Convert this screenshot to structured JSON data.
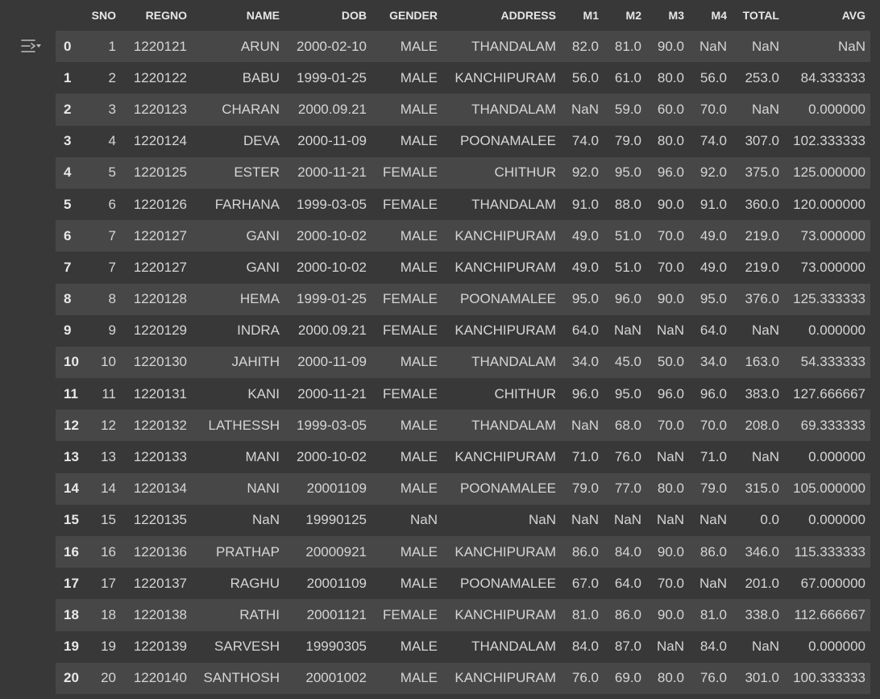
{
  "columns": [
    "",
    "SNO",
    "REGNO",
    "NAME",
    "DOB",
    "GENDER",
    "ADDRESS",
    "M1",
    "M2",
    "M3",
    "M4",
    "TOTAL",
    "AVG"
  ],
  "rows": [
    [
      "0",
      "1",
      "1220121",
      "ARUN",
      "2000-02-10",
      "MALE",
      "THANDALAM",
      "82.0",
      "81.0",
      "90.0",
      "NaN",
      "NaN",
      "NaN"
    ],
    [
      "1",
      "2",
      "1220122",
      "BABU",
      "1999-01-25",
      "MALE",
      "KANCHIPURAM",
      "56.0",
      "61.0",
      "80.0",
      "56.0",
      "253.0",
      "84.333333"
    ],
    [
      "2",
      "3",
      "1220123",
      "CHARAN",
      "2000.09.21",
      "MALE",
      "THANDALAM",
      "NaN",
      "59.0",
      "60.0",
      "70.0",
      "NaN",
      "0.000000"
    ],
    [
      "3",
      "4",
      "1220124",
      "DEVA",
      "2000-11-09",
      "MALE",
      "POONAMALEE",
      "74.0",
      "79.0",
      "80.0",
      "74.0",
      "307.0",
      "102.333333"
    ],
    [
      "4",
      "5",
      "1220125",
      "ESTER",
      "2000-11-21",
      "FEMALE",
      "CHITHUR",
      "92.0",
      "95.0",
      "96.0",
      "92.0",
      "375.0",
      "125.000000"
    ],
    [
      "5",
      "6",
      "1220126",
      "FARHANA",
      "1999-03-05",
      "FEMALE",
      "THANDALAM",
      "91.0",
      "88.0",
      "90.0",
      "91.0",
      "360.0",
      "120.000000"
    ],
    [
      "6",
      "7",
      "1220127",
      "GANI",
      "2000-10-02",
      "MALE",
      "KANCHIPURAM",
      "49.0",
      "51.0",
      "70.0",
      "49.0",
      "219.0",
      "73.000000"
    ],
    [
      "7",
      "7",
      "1220127",
      "GANI",
      "2000-10-02",
      "MALE",
      "KANCHIPURAM",
      "49.0",
      "51.0",
      "70.0",
      "49.0",
      "219.0",
      "73.000000"
    ],
    [
      "8",
      "8",
      "1220128",
      "HEMA",
      "1999-01-25",
      "FEMALE",
      "POONAMALEE",
      "95.0",
      "96.0",
      "90.0",
      "95.0",
      "376.0",
      "125.333333"
    ],
    [
      "9",
      "9",
      "1220129",
      "INDRA",
      "2000.09.21",
      "FEMALE",
      "KANCHIPURAM",
      "64.0",
      "NaN",
      "NaN",
      "64.0",
      "NaN",
      "0.000000"
    ],
    [
      "10",
      "10",
      "1220130",
      "JAHITH",
      "2000-11-09",
      "MALE",
      "THANDALAM",
      "34.0",
      "45.0",
      "50.0",
      "34.0",
      "163.0",
      "54.333333"
    ],
    [
      "11",
      "11",
      "1220131",
      "KANI",
      "2000-11-21",
      "FEMALE",
      "CHITHUR",
      "96.0",
      "95.0",
      "96.0",
      "96.0",
      "383.0",
      "127.666667"
    ],
    [
      "12",
      "12",
      "1220132",
      "LATHESSH",
      "1999-03-05",
      "MALE",
      "THANDALAM",
      "NaN",
      "68.0",
      "70.0",
      "70.0",
      "208.0",
      "69.333333"
    ],
    [
      "13",
      "13",
      "1220133",
      "MANI",
      "2000-10-02",
      "MALE",
      "KANCHIPURAM",
      "71.0",
      "76.0",
      "NaN",
      "71.0",
      "NaN",
      "0.000000"
    ],
    [
      "14",
      "14",
      "1220134",
      "NANI",
      "20001109",
      "MALE",
      "POONAMALEE",
      "79.0",
      "77.0",
      "80.0",
      "79.0",
      "315.0",
      "105.000000"
    ],
    [
      "15",
      "15",
      "1220135",
      "NaN",
      "19990125",
      "NaN",
      "NaN",
      "NaN",
      "NaN",
      "NaN",
      "NaN",
      "0.0",
      "0.000000"
    ],
    [
      "16",
      "16",
      "1220136",
      "PRATHAP",
      "20000921",
      "MALE",
      "KANCHIPURAM",
      "86.0",
      "84.0",
      "90.0",
      "86.0",
      "346.0",
      "115.333333"
    ],
    [
      "17",
      "17",
      "1220137",
      "RAGHU",
      "20001109",
      "MALE",
      "POONAMALEE",
      "67.0",
      "64.0",
      "70.0",
      "NaN",
      "201.0",
      "67.000000"
    ],
    [
      "18",
      "18",
      "1220138",
      "RATHI",
      "20001121",
      "FEMALE",
      "KANCHIPURAM",
      "81.0",
      "86.0",
      "90.0",
      "81.0",
      "338.0",
      "112.666667"
    ],
    [
      "19",
      "19",
      "1220139",
      "SARVESH",
      "19990305",
      "MALE",
      "THANDALAM",
      "84.0",
      "87.0",
      "NaN",
      "84.0",
      "NaN",
      "0.000000"
    ],
    [
      "20",
      "20",
      "1220140",
      "SANTHOSH",
      "20001002",
      "MALE",
      "KANCHIPURAM",
      "76.0",
      "69.0",
      "80.0",
      "76.0",
      "301.0",
      "100.333333"
    ]
  ],
  "icons": {
    "output_action": "output-actions-icon"
  },
  "colors": {
    "background": "#383838",
    "row_stripe": "#474747",
    "text": "#d5d5d5"
  }
}
